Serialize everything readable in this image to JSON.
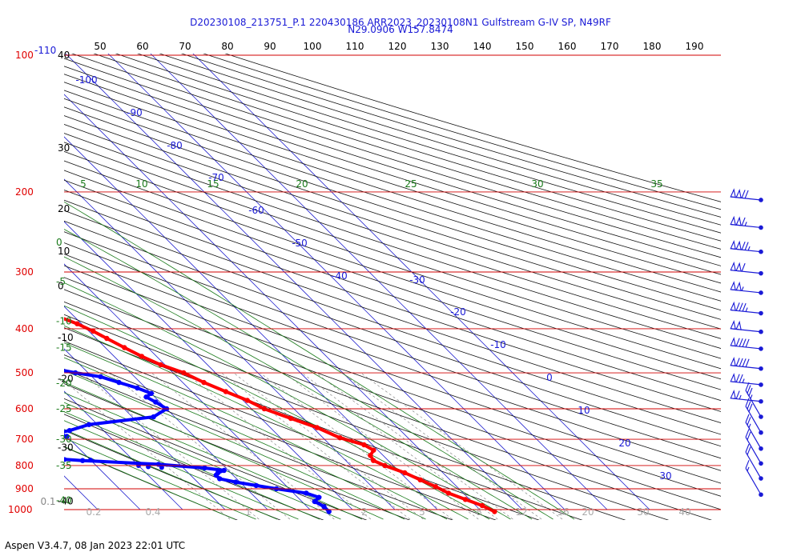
{
  "chart_data": {
    "type": "line",
    "subtype": "skew-t log-p sounding",
    "title": "D20230108_213751_P.1 220430186 ARR2023_20230108N1 Gulfstream G-IV SP, N49RF",
    "subtitle": "N29.0906 W157.8474",
    "footer": "Aspen V3.4.7, 08 Jan 2023  22:01 UTC",
    "pressure_lines": [
      {
        "p": 100,
        "label": "100"
      },
      {
        "p": 200,
        "label": "200"
      },
      {
        "p": 300,
        "label": "300"
      },
      {
        "p": 400,
        "label": "400"
      },
      {
        "p": 500,
        "label": "500"
      },
      {
        "p": 600,
        "label": "600"
      },
      {
        "p": 700,
        "label": "700"
      },
      {
        "p": 800,
        "label": "800"
      },
      {
        "p": 900,
        "label": "900"
      },
      {
        "p": 1000,
        "label": "1000"
      }
    ],
    "top_label_extra": "-110",
    "top_axis_ticks": [
      "50",
      "60",
      "70",
      "80",
      "90",
      "100",
      "110",
      "120",
      "130",
      "140",
      "150",
      "160",
      "170",
      "180",
      "190"
    ],
    "height_labels": [
      {
        "p": 100,
        "label": "40"
      },
      {
        "p": 160,
        "label": "30"
      },
      {
        "p": 218,
        "label": "20"
      },
      {
        "p": 270,
        "label": "10"
      },
      {
        "p": 322,
        "label": "0"
      },
      {
        "p": 418,
        "label": "-10"
      },
      {
        "p": 515,
        "label": "-20"
      },
      {
        "p": 730,
        "label": "-30"
      },
      {
        "p": 958,
        "label": "-40"
      }
    ],
    "theta_e_labels": [
      {
        "p": 258,
        "label": "0"
      },
      {
        "p": 315,
        "label": "-5"
      },
      {
        "p": 385,
        "label": "-10"
      },
      {
        "p": 440,
        "label": "-15"
      },
      {
        "p": 527,
        "label": "-20"
      },
      {
        "p": 600,
        "label": "-25"
      },
      {
        "p": 700,
        "label": "-30"
      },
      {
        "p": 800,
        "label": "-35"
      },
      {
        "p": 955,
        "label": "-40"
      }
    ],
    "green_top_labels": [
      "5",
      "10",
      "15",
      "20",
      "25",
      "30",
      "35"
    ],
    "isotherm_labels": [
      {
        "t": -100,
        "label": "-100"
      },
      {
        "t": -90,
        "label": "-90"
      },
      {
        "t": -80,
        "label": "-80"
      },
      {
        "t": -70,
        "label": "-70"
      },
      {
        "t": -60,
        "label": "-60"
      },
      {
        "t": -50,
        "label": "-50"
      },
      {
        "t": -40,
        "label": "-40"
      },
      {
        "t": -30,
        "label": "-30"
      },
      {
        "t": -20,
        "label": "-20"
      },
      {
        "t": -10,
        "label": "-10"
      },
      {
        "t": 0,
        "label": "0"
      },
      {
        "t": 10,
        "label": "10"
      },
      {
        "t": 20,
        "label": "20"
      },
      {
        "t": 30,
        "label": "30"
      }
    ],
    "mixing_ratio_labels": [
      "0.1",
      "0.2",
      "0.4",
      "1",
      "2",
      "4",
      "5",
      "8",
      "12",
      "16",
      "20",
      "30",
      "40"
    ],
    "temperature": {
      "name": "",
      "color": "#ff0000",
      "points": [
        [
          215,
          -52
        ],
        [
          230,
          -51.5
        ],
        [
          245,
          -50
        ],
        [
          255,
          -49
        ],
        [
          265,
          -47.5
        ],
        [
          275,
          -46
        ],
        [
          285,
          -45.5
        ],
        [
          300,
          -44
        ],
        [
          310,
          -43
        ],
        [
          320,
          -41.5
        ],
        [
          330,
          -40.5
        ],
        [
          340,
          -39.5
        ],
        [
          355,
          -37.5
        ],
        [
          370,
          -35
        ],
        [
          390,
          -31
        ],
        [
          405,
          -29
        ],
        [
          420,
          -27.5
        ],
        [
          440,
          -25.5
        ],
        [
          460,
          -23.5
        ],
        [
          480,
          -21
        ],
        [
          500,
          -17.5
        ],
        [
          525,
          -15
        ],
        [
          550,
          -12
        ],
        [
          575,
          -9
        ],
        [
          600,
          -7
        ],
        [
          630,
          -3
        ],
        [
          660,
          1
        ],
        [
          695,
          4
        ],
        [
          720,
          8
        ],
        [
          740,
          9
        ],
        [
          760,
          7
        ],
        [
          780,
          6.5
        ],
        [
          800,
          8
        ],
        [
          830,
          11
        ],
        [
          860,
          13
        ],
        [
          890,
          15
        ],
        [
          920,
          16.5
        ],
        [
          950,
          19
        ],
        [
          980,
          21.5
        ],
        [
          1010,
          23
        ]
      ]
    },
    "dewpoint": {
      "name": "",
      "color": "#0000ff",
      "points": [
        [
          250,
          -83
        ],
        [
          262,
          -83
        ],
        [
          270,
          -82
        ],
        [
          280,
          -76
        ],
        [
          285,
          -72
        ],
        [
          290,
          -69
        ],
        [
          295,
          -67
        ],
        [
          300,
          -66.5
        ],
        [
          305,
          -68
        ],
        [
          312,
          -67
        ],
        [
          320,
          -80
        ],
        [
          330,
          -86
        ],
        [
          340,
          -84
        ],
        [
          355,
          -76
        ],
        [
          365,
          -70
        ],
        [
          372,
          -69
        ],
        [
          380,
          -73
        ],
        [
          395,
          -68
        ],
        [
          400,
          -67
        ],
        [
          410,
          -63
        ],
        [
          420,
          -62
        ],
        [
          430,
          -61
        ],
        [
          440,
          -61
        ],
        [
          450,
          -63
        ],
        [
          460,
          -57
        ],
        [
          470,
          -56
        ],
        [
          475,
          -51
        ],
        [
          490,
          -47
        ],
        [
          500,
          -43
        ],
        [
          510,
          -38
        ],
        [
          525,
          -35
        ],
        [
          540,
          -32
        ],
        [
          555,
          -30
        ],
        [
          565,
          -32
        ],
        [
          580,
          -31
        ],
        [
          600,
          -30
        ],
        [
          625,
          -35
        ],
        [
          650,
          -52
        ],
        [
          670,
          -58
        ],
        [
          680,
          -62
        ],
        [
          690,
          -60
        ],
        [
          705,
          -68
        ],
        [
          720,
          -72
        ],
        [
          740,
          -78
        ],
        [
          755,
          -82
        ],
        [
          780,
          -62
        ],
        [
          795,
          -45
        ],
        [
          810,
          -35
        ],
        [
          820,
          -31
        ],
        [
          830,
          -33
        ],
        [
          840,
          -34
        ],
        [
          855,
          -34
        ],
        [
          870,
          -31
        ],
        [
          885,
          -27
        ],
        [
          900,
          -23
        ],
        [
          920,
          -17
        ],
        [
          940,
          -15
        ],
        [
          960,
          -17
        ],
        [
          985,
          -16
        ],
        [
          1010,
          -16
        ]
      ],
      "extra_points": [
        [
          735,
          -98
        ],
        [
          738,
          -90
        ],
        [
          750,
          -94
        ],
        [
          742,
          -84
        ],
        [
          752,
          -102
        ],
        [
          776,
          -66
        ],
        [
          778,
          -60
        ],
        [
          800,
          -50
        ],
        [
          805,
          -48
        ],
        [
          808,
          -45
        ],
        [
          390,
          -62
        ],
        [
          385,
          -66
        ],
        [
          385,
          -56
        ],
        [
          450,
          -73
        ],
        [
          460,
          -72
        ],
        [
          448,
          -66
        ],
        [
          470,
          -59
        ]
      ]
    },
    "wind_barbs": [
      {
        "p": 200,
        "speed": 120
      },
      {
        "p": 230,
        "speed": 115
      },
      {
        "p": 260,
        "speed": 125
      },
      {
        "p": 290,
        "speed": 110
      },
      {
        "p": 320,
        "speed": 105
      },
      {
        "p": 355,
        "speed": 85
      },
      {
        "p": 390,
        "speed": 100
      },
      {
        "p": 425,
        "speed": 90
      },
      {
        "p": 470,
        "speed": 90
      },
      {
        "p": 510,
        "speed": 75
      },
      {
        "p": 555,
        "speed": 65
      },
      {
        "p": 600,
        "speed": 35
      },
      {
        "p": 650,
        "speed": 30
      },
      {
        "p": 705,
        "speed": 25
      },
      {
        "p": 760,
        "speed": 20
      },
      {
        "p": 820,
        "speed": 20
      },
      {
        "p": 890,
        "speed": 15
      }
    ]
  }
}
